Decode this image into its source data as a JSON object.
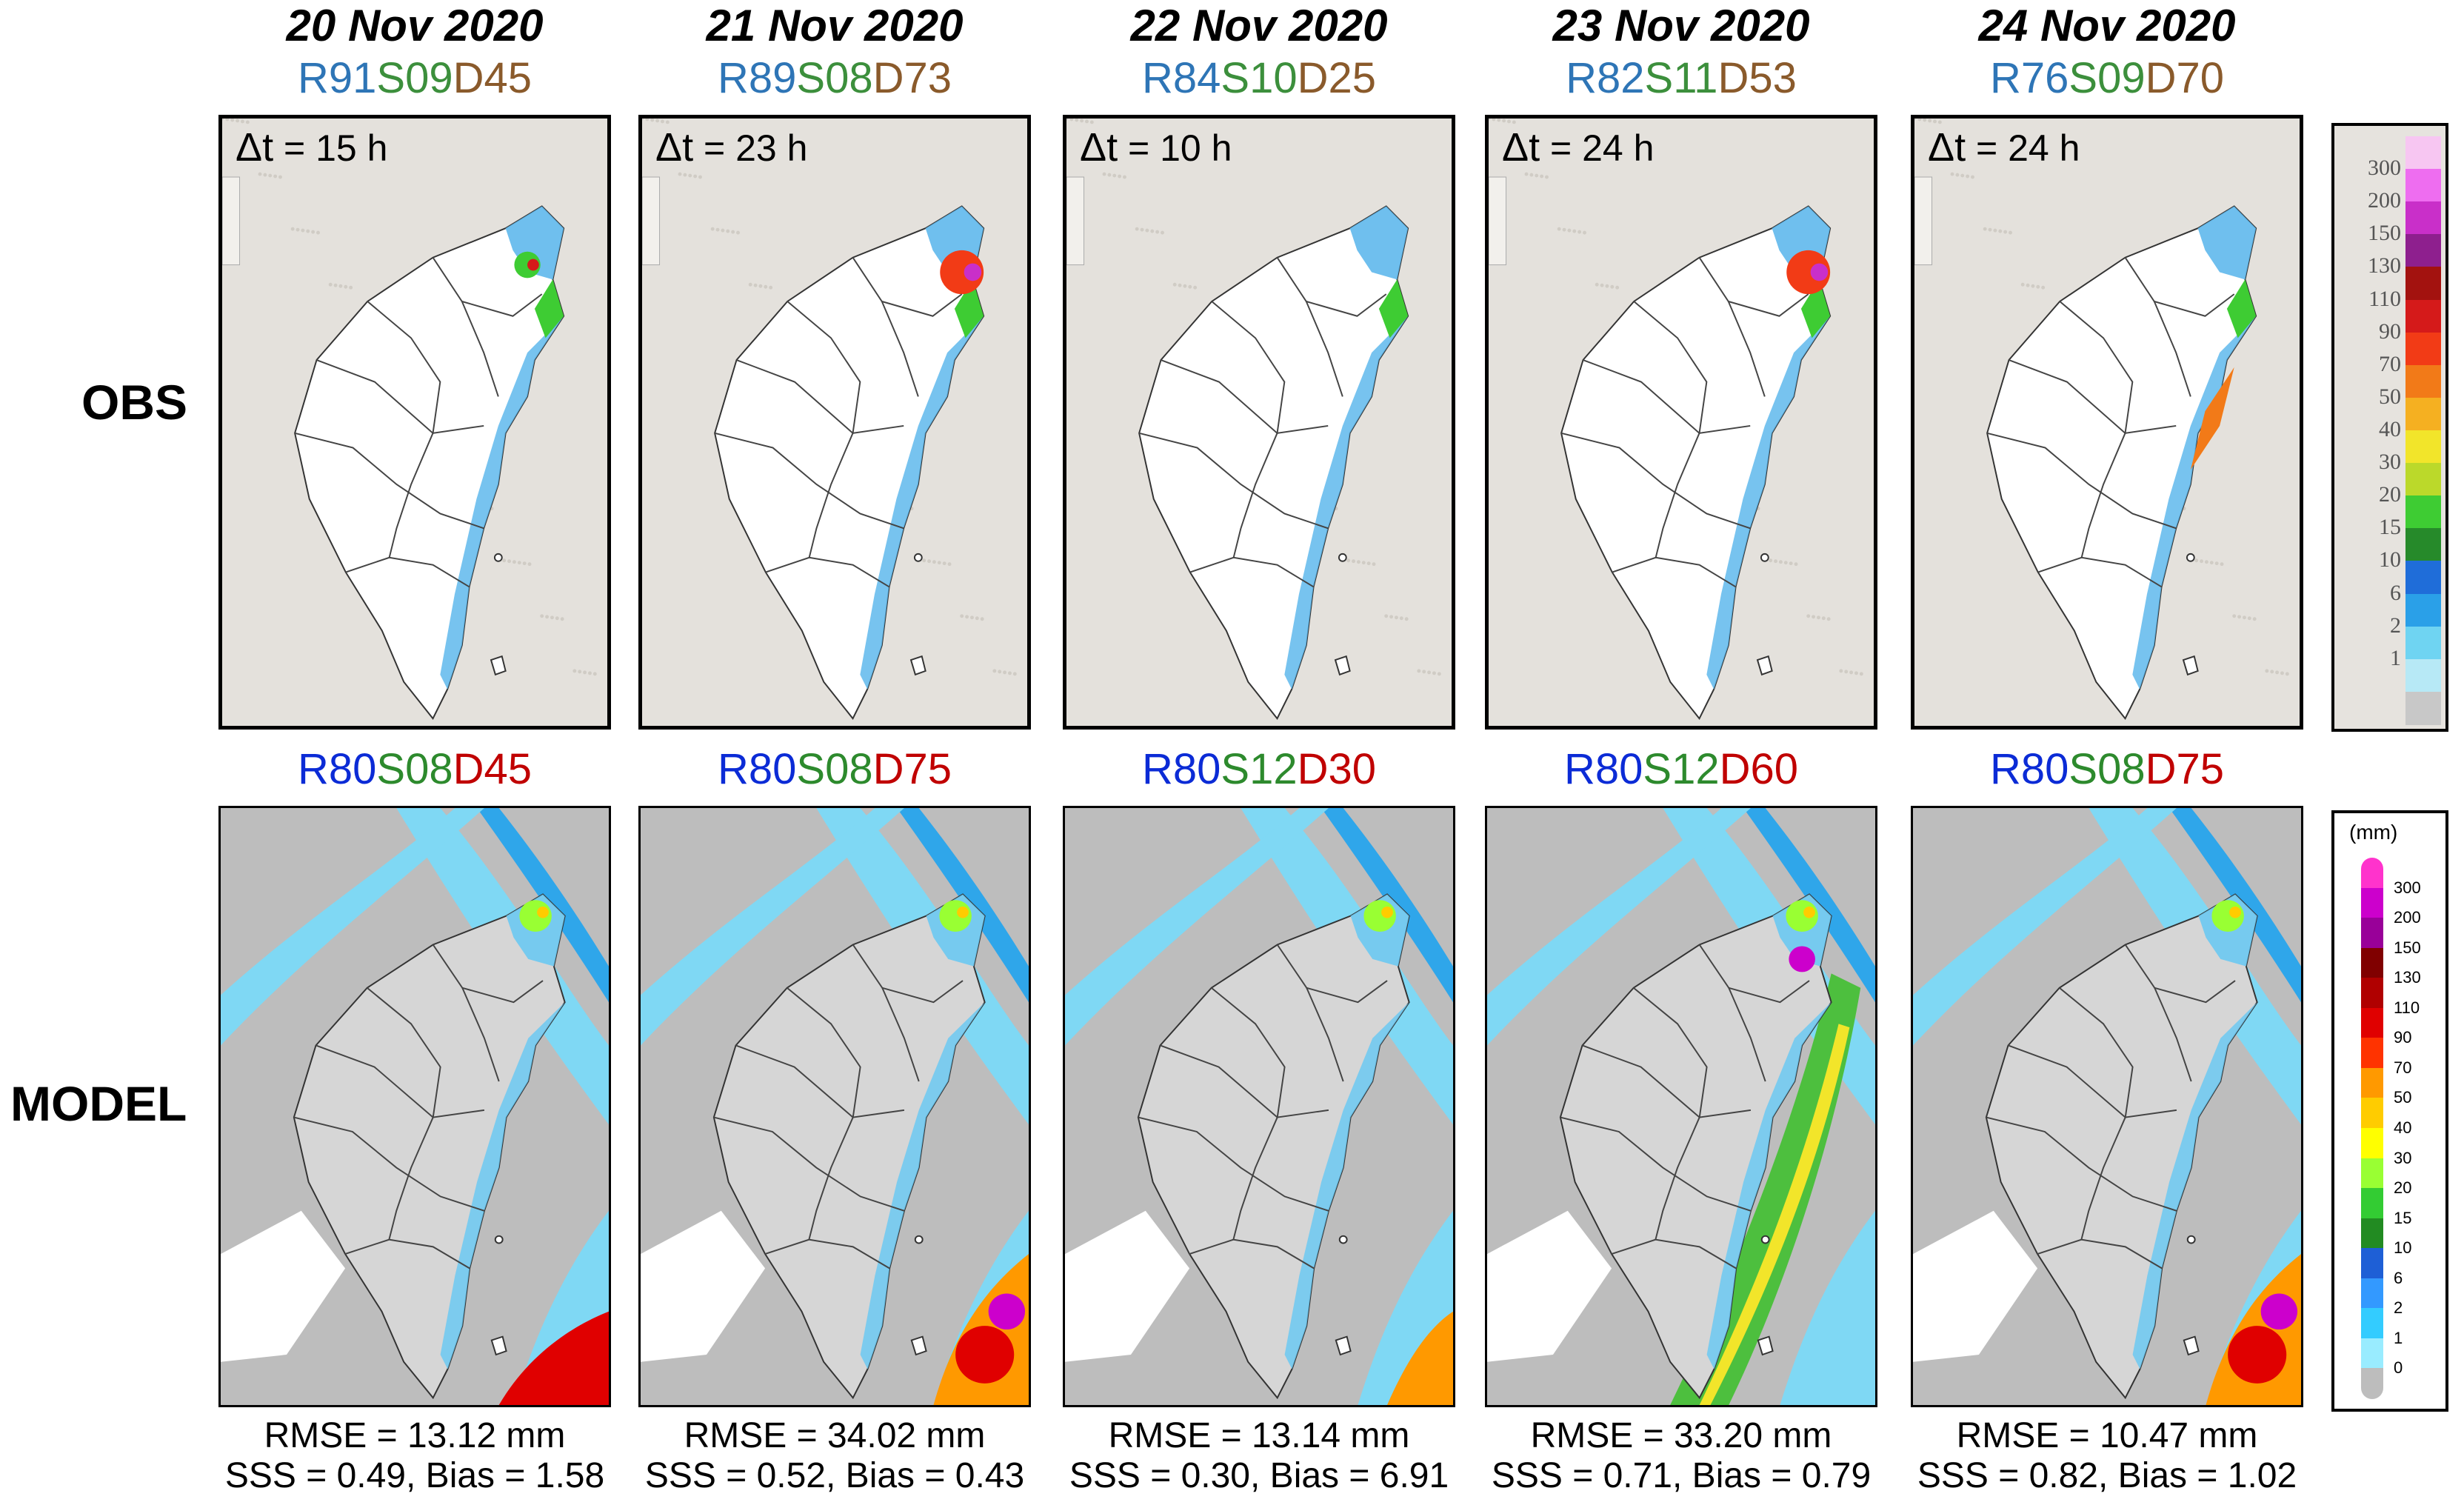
{
  "row_labels": {
    "obs": "OBS",
    "model": "MODEL"
  },
  "columns": [
    {
      "date": "20 Nov 2020",
      "obs_code": {
        "r": "R91",
        "s": "S09",
        "d": "D45"
      },
      "dt": "= 15 h",
      "model_code": {
        "r": "R80",
        "s": "S08",
        "d": "D45"
      },
      "rmse": "RMSE = 13.12 mm",
      "sss_bias": "SSS = 0.49, Bias = 1.58"
    },
    {
      "date": "21 Nov 2020",
      "obs_code": {
        "r": "R89",
        "s": "S08",
        "d": "D73"
      },
      "dt": "= 23 h",
      "model_code": {
        "r": "R80",
        "s": "S08",
        "d": "D75"
      },
      "rmse": "RMSE = 34.02 mm",
      "sss_bias": "SSS = 0.52, Bias = 0.43"
    },
    {
      "date": "22 Nov 2020",
      "obs_code": {
        "r": "R84",
        "s": "S10",
        "d": "D25"
      },
      "dt": "= 10 h",
      "model_code": {
        "r": "R80",
        "s": "S12",
        "d": "D30"
      },
      "rmse": "RMSE = 13.14 mm",
      "sss_bias": "SSS = 0.30, Bias = 6.91"
    },
    {
      "date": "23 Nov 2020",
      "obs_code": {
        "r": "R82",
        "s": "S11",
        "d": "D53"
      },
      "dt": "= 24 h",
      "model_code": {
        "r": "R80",
        "s": "S12",
        "d": "D60"
      },
      "rmse": "RMSE = 33.20 mm",
      "sss_bias": "SSS = 0.71, Bias = 0.79"
    },
    {
      "date": "24 Nov 2020",
      "obs_code": {
        "r": "R76",
        "s": "S09",
        "d": "D70"
      },
      "dt": "= 24 h",
      "model_code": {
        "r": "R80",
        "s": "S08",
        "d": "D75"
      },
      "rmse": "RMSE = 10.47 mm",
      "sss_bias": "SSS = 0.82, Bias = 1.02"
    }
  ],
  "delta_symbol": "Δt",
  "obs_colorbar": {
    "labels": [
      "300",
      "200",
      "150",
      "130",
      "110",
      "90",
      "70",
      "50",
      "40",
      "30",
      "20",
      "15",
      "10",
      "6",
      "2",
      "1"
    ],
    "colors": [
      "#f7c6f2",
      "#ee6df0",
      "#c92fc9",
      "#8e1f8e",
      "#a3120f",
      "#d51a1a",
      "#f23b16",
      "#f27a18",
      "#f5b021",
      "#f2e52a",
      "#bbd92a",
      "#3ecc33",
      "#268a2a",
      "#1f6dd9",
      "#2aa0e8",
      "#6fd4f2",
      "#b7e9f6",
      "#c8c8c8"
    ]
  },
  "model_colorbar": {
    "unit": "(mm)",
    "labels": [
      "300",
      "200",
      "150",
      "130",
      "110",
      "90",
      "70",
      "50",
      "40",
      "30",
      "20",
      "15",
      "10",
      "6",
      "2",
      "1",
      "0"
    ],
    "colors": [
      "#ff33cc",
      "#cc00cc",
      "#990099",
      "#800000",
      "#b00000",
      "#e00000",
      "#ff3300",
      "#ff9900",
      "#ffcc00",
      "#ffff00",
      "#99ff33",
      "#33cc33",
      "#228b22",
      "#1e5fd6",
      "#3399ff",
      "#33ccff",
      "#99ecff",
      "#bdbdbd"
    ]
  }
}
